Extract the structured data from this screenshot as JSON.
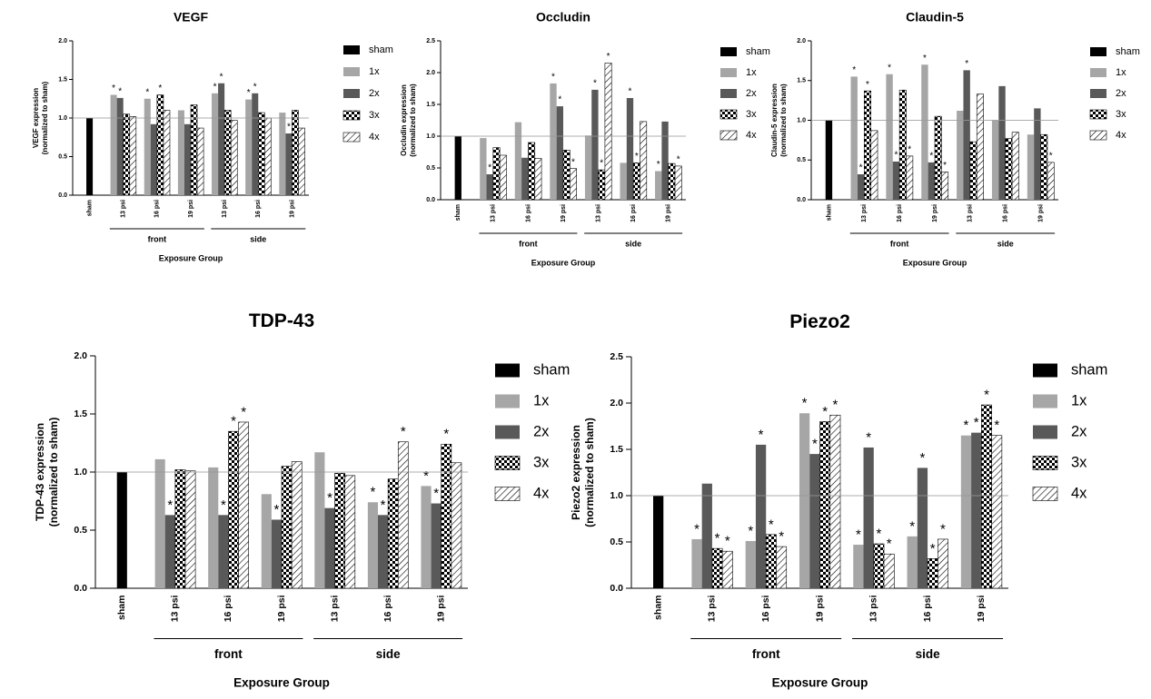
{
  "chart_data": [
    {
      "type": "bar",
      "title": "VEGF",
      "ylabel": [
        "VEGF expression",
        "(normalized to sham)"
      ],
      "xlabel": "Exposure Group",
      "categories": [
        "sham",
        "13 psi",
        "16 psi",
        "19 psi",
        "13 psi",
        "16 psi",
        "19 psi"
      ],
      "groups": [
        {
          "name": "front",
          "categories": [
            1,
            2,
            3
          ]
        },
        {
          "name": "side",
          "categories": [
            4,
            5,
            6
          ]
        }
      ],
      "ylim": [
        0,
        2
      ],
      "yticks": [
        {
          "value": 0,
          "label": "0.0"
        },
        0.5,
        {
          "value": 1,
          "label": "1.0"
        },
        1.5,
        {
          "value": 2,
          "label": "2.0"
        }
      ],
      "reference_line": 1,
      "star": "*",
      "series": [
        {
          "name": "sham",
          "color": "#000000",
          "values": [
            1.0,
            null,
            null,
            null,
            null,
            null,
            null
          ],
          "stars": []
        },
        {
          "name": "1x",
          "color": "#a6a6a6",
          "values": [
            null,
            1.3,
            1.25,
            1.1,
            1.32,
            1.24,
            1.07
          ],
          "stars": [
            1,
            2,
            4,
            5
          ]
        },
        {
          "name": "2x",
          "color": "#595959",
          "values": [
            null,
            1.26,
            0.92,
            0.92,
            1.45,
            1.32,
            0.8
          ],
          "stars": [
            1,
            4,
            5,
            6
          ]
        },
        {
          "name": "3x",
          "color": "#000000",
          "pattern": "checker",
          "values": [
            null,
            1.05,
            1.3,
            1.17,
            1.1,
            1.07,
            1.1
          ],
          "stars": [
            2
          ]
        },
        {
          "name": "4x",
          "color": "#000000",
          "pattern": "hatch",
          "values": [
            null,
            1.02,
            1.1,
            0.87,
            0.97,
            1.0,
            0.87
          ],
          "stars": []
        }
      ]
    },
    {
      "type": "bar",
      "title": "Occludin",
      "ylabel": [
        "Occludin expression",
        "(normalized to sham)"
      ],
      "xlabel": "Exposure Group",
      "categories": [
        "sham",
        "13 psi",
        "16 psi",
        "19 psi",
        "13 psi",
        "16 psi",
        "19 psi"
      ],
      "groups": [
        {
          "name": "front",
          "categories": [
            1,
            2,
            3
          ]
        },
        {
          "name": "side",
          "categories": [
            4,
            5,
            6
          ]
        }
      ],
      "ylim": [
        0,
        2.5
      ],
      "yticks": [
        {
          "value": 0,
          "label": "0.0"
        },
        0.5,
        {
          "value": 1,
          "label": "1.0"
        },
        1.5,
        {
          "value": 2,
          "label": "2.0"
        },
        2.5
      ],
      "reference_line": 1,
      "star": "*",
      "series": [
        {
          "name": "sham",
          "color": "#000000",
          "values": [
            1.0,
            null,
            null,
            null,
            null,
            null,
            null
          ],
          "stars": []
        },
        {
          "name": "1x",
          "color": "#a6a6a6",
          "values": [
            null,
            0.97,
            1.22,
            1.83,
            1.01,
            0.58,
            0.45
          ],
          "stars": [
            3,
            6
          ]
        },
        {
          "name": "2x",
          "color": "#595959",
          "values": [
            null,
            0.4,
            0.66,
            1.47,
            1.73,
            1.6,
            1.23
          ],
          "stars": [
            1,
            3,
            4,
            5
          ]
        },
        {
          "name": "3x",
          "color": "#000000",
          "pattern": "checker",
          "values": [
            null,
            0.82,
            0.9,
            0.78,
            0.47,
            0.58,
            0.57
          ],
          "stars": [
            4,
            5
          ]
        },
        {
          "name": "4x",
          "color": "#000000",
          "pattern": "hatch",
          "values": [
            null,
            0.7,
            0.65,
            0.49,
            2.15,
            1.23,
            0.53
          ],
          "stars": [
            3,
            4,
            6
          ]
        }
      ]
    },
    {
      "type": "bar",
      "title": "Claudin-5",
      "ylabel": [
        "Claudin-5 expression",
        "(normalized to sham)"
      ],
      "xlabel": "Exposure Group",
      "categories": [
        "sham",
        "13 psi",
        "16 psi",
        "19 psi",
        "13 psi",
        "16 psi",
        "19 psi"
      ],
      "groups": [
        {
          "name": "front",
          "categories": [
            1,
            2,
            3
          ]
        },
        {
          "name": "side",
          "categories": [
            4,
            5,
            6
          ]
        }
      ],
      "ylim": [
        0,
        2
      ],
      "yticks": [
        {
          "value": 0,
          "label": "0.0"
        },
        0.5,
        {
          "value": 1,
          "label": "1.0"
        },
        1.5,
        {
          "value": 2,
          "label": "2.0"
        }
      ],
      "reference_line": 1,
      "star": "*",
      "series": [
        {
          "name": "sham",
          "color": "#000000",
          "values": [
            1.0,
            null,
            null,
            null,
            null,
            null,
            null
          ],
          "stars": []
        },
        {
          "name": "1x",
          "color": "#a6a6a6",
          "values": [
            null,
            1.55,
            1.58,
            1.7,
            1.12,
            1.0,
            0.82
          ],
          "stars": [
            1,
            2,
            3
          ]
        },
        {
          "name": "2x",
          "color": "#595959",
          "values": [
            null,
            0.32,
            0.48,
            0.47,
            1.63,
            1.43,
            1.15
          ],
          "stars": [
            1,
            2,
            3,
            4
          ]
        },
        {
          "name": "3x",
          "color": "#000000",
          "pattern": "checker",
          "values": [
            null,
            1.37,
            1.38,
            1.05,
            0.73,
            0.77,
            0.82
          ],
          "stars": [
            1
          ]
        },
        {
          "name": "4x",
          "color": "#000000",
          "pattern": "hatch",
          "values": [
            null,
            0.87,
            0.55,
            0.35,
            1.33,
            0.85,
            0.47
          ],
          "stars": [
            2,
            3,
            6
          ]
        }
      ]
    },
    {
      "type": "bar",
      "title": "TDP-43",
      "ylabel": [
        "TDP-43 expression",
        "(normalized to sham)"
      ],
      "xlabel": "Exposure Group",
      "categories": [
        "sham",
        "13 psi",
        "16 psi",
        "19 psi",
        "13 psi",
        "16 psi",
        "19 psi"
      ],
      "groups": [
        {
          "name": "front",
          "categories": [
            1,
            2,
            3
          ]
        },
        {
          "name": "side",
          "categories": [
            4,
            5,
            6
          ]
        }
      ],
      "ylim": [
        0,
        2
      ],
      "yticks": [
        {
          "value": 0,
          "label": "0.0"
        },
        0.5,
        {
          "value": 1,
          "label": "1.0"
        },
        1.5,
        {
          "value": 2,
          "label": "2.0"
        }
      ],
      "reference_line": 1,
      "star": "*",
      "series": [
        {
          "name": "sham",
          "color": "#000000",
          "values": [
            1.0,
            null,
            null,
            null,
            null,
            null,
            null
          ],
          "stars": []
        },
        {
          "name": "1x",
          "color": "#a6a6a6",
          "values": [
            null,
            1.11,
            1.04,
            0.81,
            1.17,
            0.74,
            0.88
          ],
          "stars": [
            5,
            6
          ]
        },
        {
          "name": "2x",
          "color": "#595959",
          "values": [
            null,
            0.63,
            0.63,
            0.59,
            0.69,
            0.63,
            0.73
          ],
          "stars": [
            1,
            2,
            3,
            4,
            5,
            6
          ]
        },
        {
          "name": "3x",
          "color": "#000000",
          "pattern": "checker",
          "values": [
            null,
            1.02,
            1.35,
            1.05,
            0.99,
            0.94,
            1.24
          ],
          "stars": [
            2,
            6
          ]
        },
        {
          "name": "4x",
          "color": "#000000",
          "pattern": "hatch",
          "values": [
            null,
            1.01,
            1.43,
            1.09,
            0.97,
            1.26,
            1.08
          ],
          "stars": [
            2,
            5
          ]
        }
      ]
    },
    {
      "type": "bar",
      "title": "Piezo2",
      "ylabel": [
        "Piezo2 expression",
        "(normalized to sham)"
      ],
      "xlabel": "Exposure Group",
      "categories": [
        "sham",
        "13 psi",
        "16 psi",
        "19 psi",
        "13 psi",
        "16 psi",
        "19 psi"
      ],
      "groups": [
        {
          "name": "front",
          "categories": [
            1,
            2,
            3
          ]
        },
        {
          "name": "side",
          "categories": [
            4,
            5,
            6
          ]
        }
      ],
      "ylim": [
        0,
        2.5
      ],
      "yticks": [
        {
          "value": 0,
          "label": "0.0"
        },
        0.5,
        {
          "value": 1,
          "label": "1.0"
        },
        1.5,
        {
          "value": 2,
          "label": "2.0"
        },
        2.5
      ],
      "reference_line": 1,
      "star": "*",
      "series": [
        {
          "name": "sham",
          "color": "#000000",
          "values": [
            1.0,
            null,
            null,
            null,
            null,
            null,
            null
          ],
          "stars": []
        },
        {
          "name": "1x",
          "color": "#a6a6a6",
          "values": [
            null,
            0.53,
            0.51,
            1.89,
            0.47,
            0.56,
            1.65
          ],
          "stars": [
            1,
            2,
            3,
            4,
            5,
            6
          ]
        },
        {
          "name": "2x",
          "color": "#595959",
          "values": [
            null,
            1.13,
            1.55,
            1.45,
            1.52,
            1.3,
            1.68
          ],
          "stars": [
            2,
            3,
            4,
            5,
            6
          ]
        },
        {
          "name": "3x",
          "color": "#000000",
          "pattern": "checker",
          "values": [
            null,
            0.43,
            0.58,
            1.8,
            0.48,
            0.32,
            1.98
          ],
          "stars": [
            1,
            2,
            3,
            4,
            5,
            6
          ]
        },
        {
          "name": "4x",
          "color": "#000000",
          "pattern": "hatch",
          "values": [
            null,
            0.4,
            0.45,
            1.87,
            0.37,
            0.53,
            1.65
          ],
          "stars": [
            1,
            2,
            3,
            4,
            5,
            6
          ]
        }
      ]
    }
  ]
}
